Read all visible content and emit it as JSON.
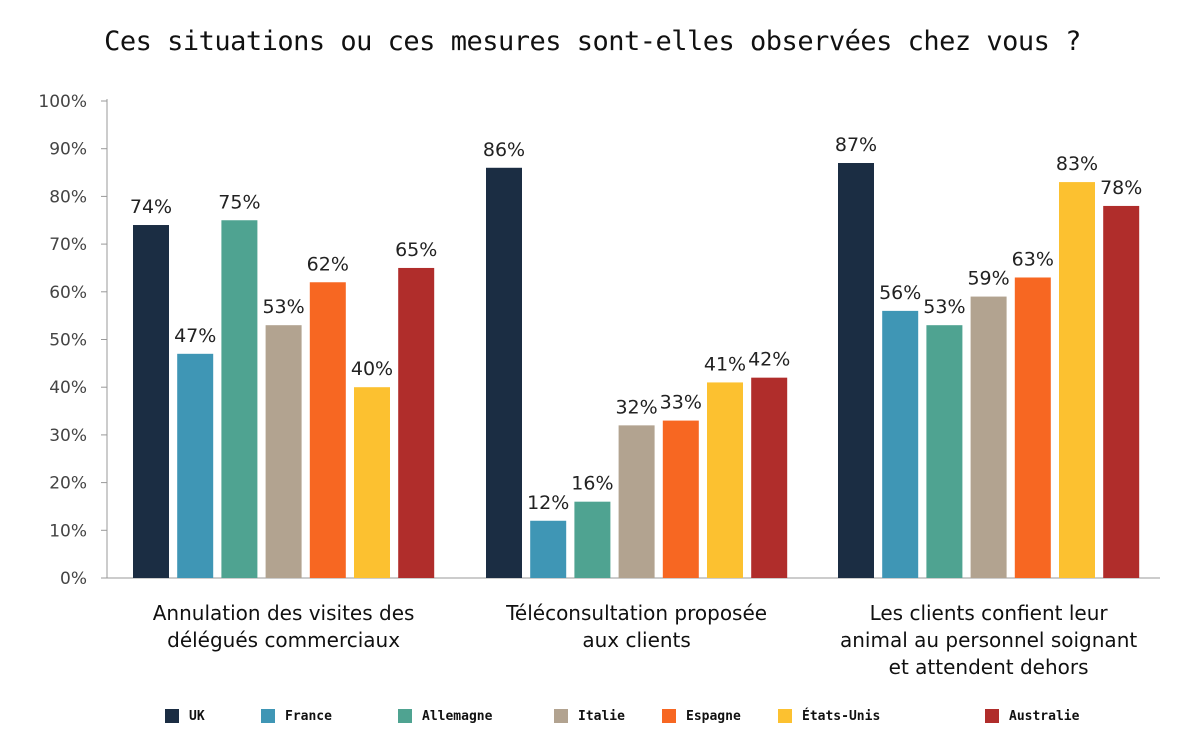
{
  "chart_data": {
    "type": "bar",
    "title": "Ces situations ou ces mesures sont-elles observées chez vous ?",
    "categories": [
      [
        "Annulation des visites des",
        "délégués commerciaux"
      ],
      [
        "Téléconsultation proposée",
        "aux clients"
      ],
      [
        "Les clients confient leur",
        "animal au personnel soignant",
        "et attendent dehors"
      ]
    ],
    "series": [
      {
        "name": "UK",
        "color": "#1b2d43",
        "values": [
          74,
          86,
          87
        ]
      },
      {
        "name": "France",
        "color": "#3f96b5",
        "values": [
          47,
          12,
          56
        ]
      },
      {
        "name": "Allemagne",
        "color": "#4fa391",
        "values": [
          75,
          16,
          53
        ]
      },
      {
        "name": "Italie",
        "color": "#b2a390",
        "values": [
          53,
          32,
          59
        ]
      },
      {
        "name": "Espagne",
        "color": "#f76722",
        "values": [
          62,
          33,
          63
        ]
      },
      {
        "name": "États-Unis",
        "color": "#fcc130",
        "values": [
          40,
          41,
          83
        ]
      },
      {
        "name": "Australie",
        "color": "#b02d2b",
        "values": [
          65,
          42,
          78
        ]
      }
    ],
    "value_labels": [
      [
        "74%",
        "86%",
        "87%"
      ],
      [
        "47%",
        "12%",
        "56%"
      ],
      [
        "75%",
        "16%",
        "53%"
      ],
      [
        "53%",
        "32%",
        "59%"
      ],
      [
        "62%",
        "33%",
        "63%"
      ],
      [
        "40%",
        "41%",
        "83%"
      ],
      [
        "65%",
        "42%",
        "78%"
      ]
    ],
    "y_ticks": [
      "0%",
      "10%",
      "20%",
      "30%",
      "40%",
      "50%",
      "60%",
      "70%",
      "80%",
      "90%",
      "100%"
    ],
    "ylim": [
      0,
      100
    ],
    "grid": false,
    "legend_position": "bottom"
  }
}
